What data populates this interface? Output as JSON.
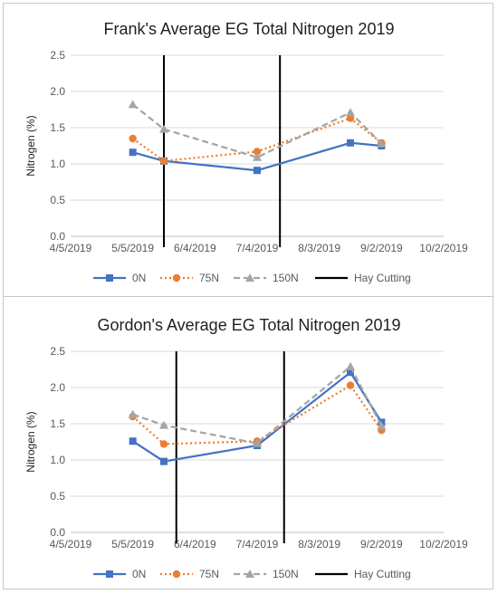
{
  "legend_labels": [
    "0N",
    "75N",
    "150N",
    "Hay Cutting"
  ],
  "colors": {
    "s0": "#4472c4",
    "s75": "#ed7d31",
    "s150": "#a5a5a5",
    "cut": "#000000",
    "grid": "#d9d9d9",
    "text": "#595959",
    "title": "#1f1f1f"
  },
  "chart_data": [
    {
      "type": "line",
      "title": "Frank's Average EG Total Nitrogen 2019",
      "ylabel": "Nitrogen (%)",
      "xlabel": "",
      "ylim": [
        0,
        2.5
      ],
      "y_ticks": [
        "0.0",
        "0.5",
        "1.0",
        "1.5",
        "2.0",
        "2.5"
      ],
      "x_ticks": [
        "4/5/2019",
        "5/5/2019",
        "6/4/2019",
        "7/4/2019",
        "8/3/2019",
        "9/2/2019",
        "10/2/2019"
      ],
      "xlim": [
        "2019-04-05",
        "2019-10-02"
      ],
      "grid": true,
      "legend": "bottom",
      "x": [
        "2019-05-05",
        "2019-05-20",
        "2019-07-04",
        "2019-08-18",
        "2019-09-02"
      ],
      "series": [
        {
          "name": "0N",
          "values": [
            1.16,
            1.04,
            0.91,
            1.29,
            1.25
          ]
        },
        {
          "name": "75N",
          "values": [
            1.35,
            1.04,
            1.17,
            1.63,
            1.29
          ]
        },
        {
          "name": "150N",
          "values": [
            1.82,
            1.48,
            1.09,
            1.71,
            1.28
          ]
        }
      ],
      "hay_cutting": [
        "2019-05-20",
        "2019-07-15"
      ]
    },
    {
      "type": "line",
      "title": "Gordon's Average EG Total Nitrogen 2019",
      "ylabel": "Nitrogen (%)",
      "xlabel": "",
      "ylim": [
        0,
        2.5
      ],
      "y_ticks": [
        "0.0",
        "0.5",
        "1.0",
        "1.5",
        "2.0",
        "2.5"
      ],
      "x_ticks": [
        "4/5/2019",
        "5/5/2019",
        "6/4/2019",
        "7/4/2019",
        "8/3/2019",
        "9/2/2019",
        "10/2/2019"
      ],
      "xlim": [
        "2019-04-05",
        "2019-10-02"
      ],
      "grid": true,
      "legend": "bottom",
      "x": [
        "2019-05-05",
        "2019-05-20",
        "2019-07-04",
        "2019-08-18",
        "2019-09-02"
      ],
      "series": [
        {
          "name": "0N",
          "values": [
            1.26,
            0.98,
            1.2,
            2.21,
            1.52
          ]
        },
        {
          "name": "75N",
          "values": [
            1.6,
            1.22,
            1.26,
            2.03,
            1.41
          ]
        },
        {
          "name": "150N",
          "values": [
            1.63,
            1.48,
            1.23,
            2.29,
            1.47
          ]
        }
      ],
      "hay_cutting": [
        "2019-05-26",
        "2019-07-17"
      ]
    }
  ]
}
